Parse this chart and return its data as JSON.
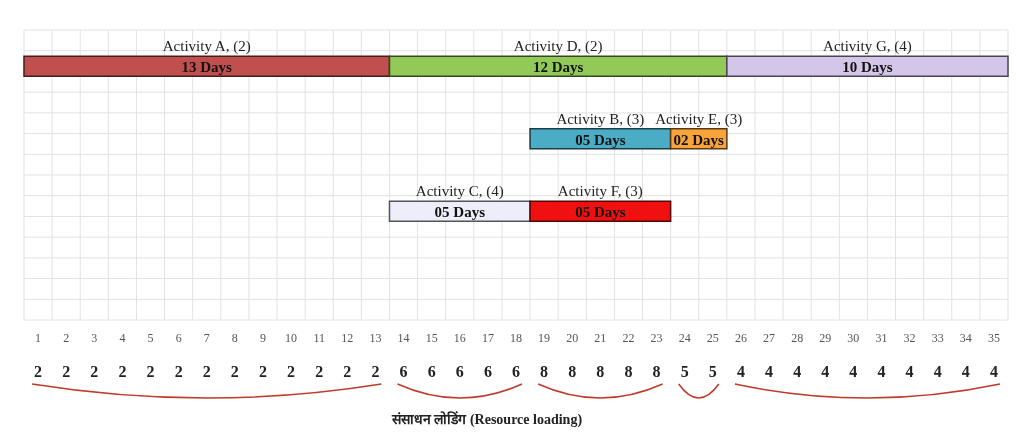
{
  "chart_data": {
    "type": "bar",
    "orientation": "horizontal",
    "categories": [
      null,
      null,
      null,
      null
    ],
    "series": [
      {
        "name": "Activity A, (2)",
        "color": "#c0504d",
        "values": [
          13,
          null,
          null,
          null
        ],
        "base": [
          0,
          null,
          null,
          null
        ],
        "value_labels": [
          "13 Days",
          null,
          null,
          null
        ]
      },
      {
        "name": "Activity D, (2)",
        "color": "#92c957",
        "values": [
          12,
          null,
          null,
          null
        ],
        "base": [
          13,
          null,
          null,
          null
        ],
        "value_labels": [
          "12 Days",
          null,
          null,
          null
        ]
      },
      {
        "name": "Activity G, (4)",
        "color": "#d4c6e8",
        "values": [
          10,
          null,
          null,
          null
        ],
        "base": [
          25,
          null,
          null,
          null
        ],
        "value_labels": [
          "10 Days",
          null,
          null,
          null
        ]
      },
      {
        "name": "Activity B, (3)",
        "color": "#4bacc6",
        "values": [
          null,
          5,
          null,
          null
        ],
        "base": [
          null,
          18,
          null,
          null
        ],
        "value_labels": [
          null,
          "05 Days",
          null,
          null
        ]
      },
      {
        "name": "Activity E, (3)",
        "color": "#f8a43a",
        "values": [
          null,
          2,
          null,
          null
        ],
        "base": [
          null,
          23,
          null,
          null
        ],
        "value_labels": [
          null,
          "02 Days",
          null,
          null
        ]
      },
      {
        "name": "Activity C, (4)",
        "color": "#eeeefa",
        "values": [
          null,
          null,
          5,
          null
        ],
        "base": [
          null,
          null,
          13,
          null
        ],
        "value_labels": [
          null,
          null,
          "05 Days",
          null
        ]
      },
      {
        "name": "Activity F, (3)",
        "color": "#f01010",
        "values": [
          null,
          null,
          5,
          null
        ],
        "base": [
          null,
          null,
          18,
          null
        ],
        "value_labels": [
          null,
          null,
          "05 Days",
          null
        ]
      }
    ],
    "xlim": [
      0,
      35
    ],
    "xticks": [
      {
        "value": 0.5,
        "label": "1"
      },
      {
        "value": 1.5,
        "label": "2"
      },
      {
        "value": 2.5,
        "label": "3"
      },
      {
        "value": 3.5,
        "label": "4"
      },
      {
        "value": 4.5,
        "label": "5"
      },
      {
        "value": 5.5,
        "label": "6"
      },
      {
        "value": 6.5,
        "label": "7"
      },
      {
        "value": 7.5,
        "label": "8"
      },
      {
        "value": 8.5,
        "label": "9"
      },
      {
        "value": 9.5,
        "label": "10"
      },
      {
        "value": 10.5,
        "label": "11"
      },
      {
        "value": 11.5,
        "label": "12"
      },
      {
        "value": 12.5,
        "label": "13"
      },
      {
        "value": 13.5,
        "label": "14"
      },
      {
        "value": 14.5,
        "label": "15"
      },
      {
        "value": 15.5,
        "label": "16"
      },
      {
        "value": 16.5,
        "label": "17"
      },
      {
        "value": 17.5,
        "label": "18"
      },
      {
        "value": 18.5,
        "label": "19"
      },
      {
        "value": 19.5,
        "label": "20"
      },
      {
        "value": 20.5,
        "label": "21"
      },
      {
        "value": 21.5,
        "label": "22"
      },
      {
        "value": 22.5,
        "label": "23"
      },
      {
        "value": 23.5,
        "label": "24"
      },
      {
        "value": 24.5,
        "label": "25"
      },
      {
        "value": 25.5,
        "label": "26"
      },
      {
        "value": 26.5,
        "label": "27"
      },
      {
        "value": 27.5,
        "label": "28"
      },
      {
        "value": 28.5,
        "label": "29"
      },
      {
        "value": 29.5,
        "label": "30"
      },
      {
        "value": 30.5,
        "label": "31"
      },
      {
        "value": 31.5,
        "label": "32"
      },
      {
        "value": 32.5,
        "label": "33"
      },
      {
        "value": 33.5,
        "label": "34"
      },
      {
        "value": 34.5,
        "label": "35"
      }
    ],
    "grid": true,
    "annotations": [
      "2",
      "2",
      "2",
      "2",
      "2",
      "2",
      "2",
      "2",
      "2",
      "2",
      "2",
      "2",
      "2",
      "6",
      "6",
      "6",
      "6",
      "6",
      "8",
      "8",
      "8",
      "8",
      "8",
      "5",
      "5",
      "4",
      "4",
      "4",
      "4",
      "4",
      "4",
      "4",
      "4",
      "4",
      "4",
      "संसाधन लोडिंग (Resource loading)"
    ]
  }
}
